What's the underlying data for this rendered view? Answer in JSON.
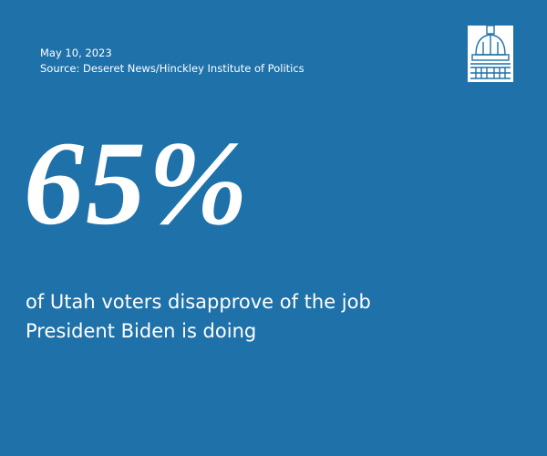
{
  "date": "May 10, 2023",
  "source": "Source:  Deseret News/Hinckley Institute of Politics",
  "stat": "65%",
  "caption": "of Utah voters disapprove of the job President Biden is doing"
}
